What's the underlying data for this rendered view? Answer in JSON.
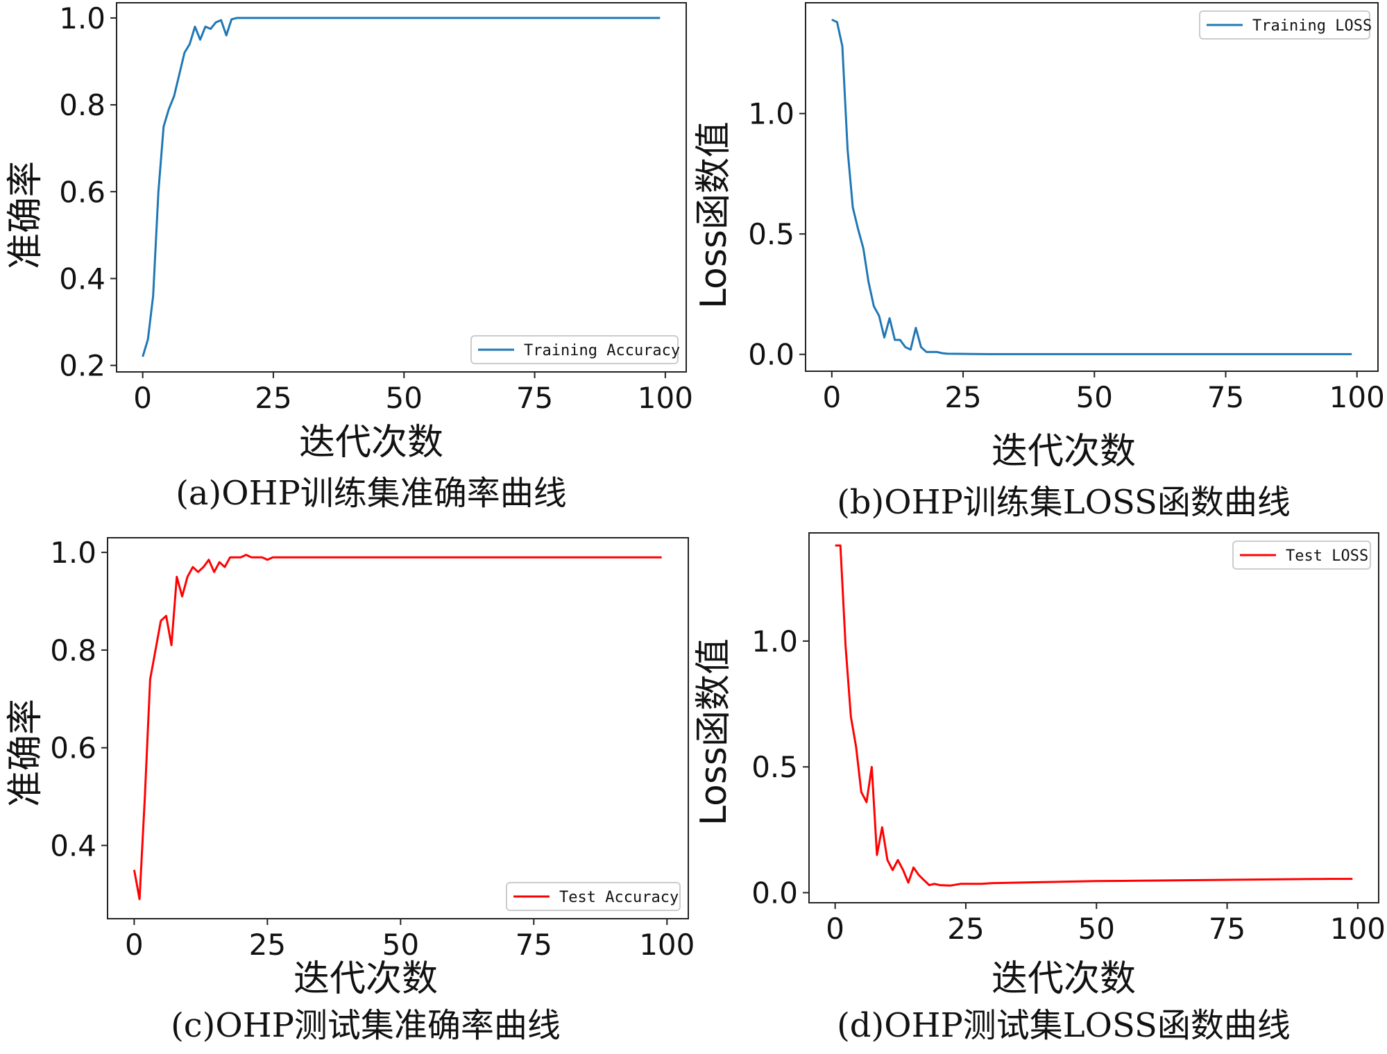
{
  "chart_data": [
    {
      "type": "line",
      "caption": "(a)OHP训练集准确率曲线",
      "xlabel": "迭代次数",
      "ylabel": "准确率",
      "xlim": [
        -5,
        104
      ],
      "ylim": [
        0.185,
        1.035
      ],
      "xticks": [
        0,
        25,
        50,
        75,
        100
      ],
      "yticks": [
        0.2,
        0.4,
        0.6,
        0.8,
        1.0
      ],
      "ytick_labels": [
        "0.2",
        "0.4",
        "0.6",
        "0.8",
        "1.0"
      ],
      "legend": "bottom-right",
      "series": [
        {
          "name": "Training Accuracy",
          "color": "#1f77b4",
          "x": [
            0,
            1,
            2,
            3,
            4,
            5,
            6,
            7,
            8,
            9,
            10,
            11,
            12,
            13,
            14,
            15,
            16,
            17,
            18,
            19,
            20,
            25,
            30,
            40,
            50,
            60,
            70,
            80,
            90,
            99
          ],
          "y": [
            0.22,
            0.26,
            0.36,
            0.6,
            0.75,
            0.79,
            0.82,
            0.87,
            0.92,
            0.94,
            0.98,
            0.95,
            0.98,
            0.975,
            0.99,
            0.995,
            0.96,
            0.997,
            1.0,
            1.0,
            1.0,
            1.0,
            1.0,
            1.0,
            1.0,
            1.0,
            1.0,
            1.0,
            1.0,
            1.0
          ]
        }
      ]
    },
    {
      "type": "line",
      "caption": "(b)OHP训练集LOSS函数曲线",
      "xlabel": "迭代次数",
      "ylabel": "Loss函数值",
      "xlim": [
        -5,
        104
      ],
      "ylim": [
        -0.07,
        1.46
      ],
      "xticks": [
        0,
        25,
        50,
        75,
        100
      ],
      "yticks": [
        0.0,
        0.5,
        1.0
      ],
      "ytick_labels": [
        "0.0",
        "0.5",
        "1.0"
      ],
      "legend": "top-right",
      "series": [
        {
          "name": "Training LOSS",
          "color": "#1f77b4",
          "x": [
            0,
            1,
            2,
            3,
            4,
            5,
            6,
            7,
            8,
            9,
            10,
            11,
            12,
            13,
            14,
            15,
            16,
            17,
            18,
            19,
            20,
            21,
            22,
            25,
            30,
            40,
            50,
            60,
            70,
            80,
            90,
            99
          ],
          "y": [
            1.39,
            1.38,
            1.28,
            0.85,
            0.61,
            0.52,
            0.44,
            0.3,
            0.2,
            0.16,
            0.07,
            0.15,
            0.06,
            0.06,
            0.03,
            0.02,
            0.11,
            0.03,
            0.01,
            0.01,
            0.01,
            0.005,
            0.003,
            0.002,
            0.001,
            0.001,
            0.001,
            0.001,
            0.001,
            0.001,
            0.001,
            0.001
          ]
        }
      ]
    },
    {
      "type": "line",
      "caption": "(c)OHP测试集准确率曲线",
      "xlabel": "迭代次数",
      "ylabel": "准确率",
      "xlim": [
        -5,
        104
      ],
      "ylim": [
        0.25,
        1.03
      ],
      "xticks": [
        0,
        25,
        50,
        75,
        100
      ],
      "yticks": [
        0.4,
        0.6,
        0.8,
        1.0
      ],
      "ytick_labels": [
        "0.4",
        "0.6",
        "0.8",
        "1.0"
      ],
      "legend": "bottom-right",
      "series": [
        {
          "name": "Test Accuracy",
          "color": "#ff0000",
          "x": [
            0,
            1,
            2,
            3,
            4,
            5,
            6,
            7,
            8,
            9,
            10,
            11,
            12,
            13,
            14,
            15,
            16,
            17,
            18,
            19,
            20,
            21,
            22,
            23,
            24,
            25,
            26,
            27,
            30,
            40,
            50,
            60,
            70,
            80,
            90,
            99
          ],
          "y": [
            0.35,
            0.29,
            0.5,
            0.74,
            0.8,
            0.86,
            0.87,
            0.81,
            0.95,
            0.91,
            0.95,
            0.97,
            0.96,
            0.97,
            0.985,
            0.96,
            0.98,
            0.97,
            0.99,
            0.99,
            0.99,
            0.995,
            0.99,
            0.99,
            0.99,
            0.985,
            0.99,
            0.99,
            0.99,
            0.99,
            0.99,
            0.99,
            0.99,
            0.99,
            0.99,
            0.99
          ]
        }
      ]
    },
    {
      "type": "line",
      "caption": "(d)OHP测试集LOSS函数曲线",
      "xlabel": "迭代次数",
      "ylabel": "Loss函数值",
      "xlim": [
        -5,
        104
      ],
      "ylim": [
        -0.04,
        1.43
      ],
      "xticks": [
        0,
        25,
        50,
        75,
        100
      ],
      "yticks": [
        0.0,
        0.5,
        1.0
      ],
      "ytick_labels": [
        "0.0",
        "0.5",
        "1.0"
      ],
      "legend": "top-right",
      "series": [
        {
          "name": "Test LOSS",
          "color": "#ff0000",
          "x": [
            0,
            1,
            2,
            3,
            4,
            5,
            6,
            7,
            8,
            9,
            10,
            11,
            12,
            13,
            14,
            15,
            16,
            17,
            18,
            19,
            20,
            22,
            24,
            26,
            28,
            30,
            35,
            40,
            45,
            50,
            55,
            60,
            65,
            70,
            75,
            80,
            85,
            90,
            95,
            99
          ],
          "y": [
            1.38,
            1.38,
            0.98,
            0.7,
            0.58,
            0.4,
            0.36,
            0.5,
            0.15,
            0.26,
            0.13,
            0.09,
            0.13,
            0.09,
            0.04,
            0.1,
            0.07,
            0.05,
            0.03,
            0.035,
            0.03,
            0.028,
            0.035,
            0.035,
            0.035,
            0.038,
            0.04,
            0.042,
            0.044,
            0.046,
            0.047,
            0.048,
            0.049,
            0.05,
            0.051,
            0.052,
            0.053,
            0.054,
            0.055,
            0.055
          ]
        }
      ]
    }
  ]
}
